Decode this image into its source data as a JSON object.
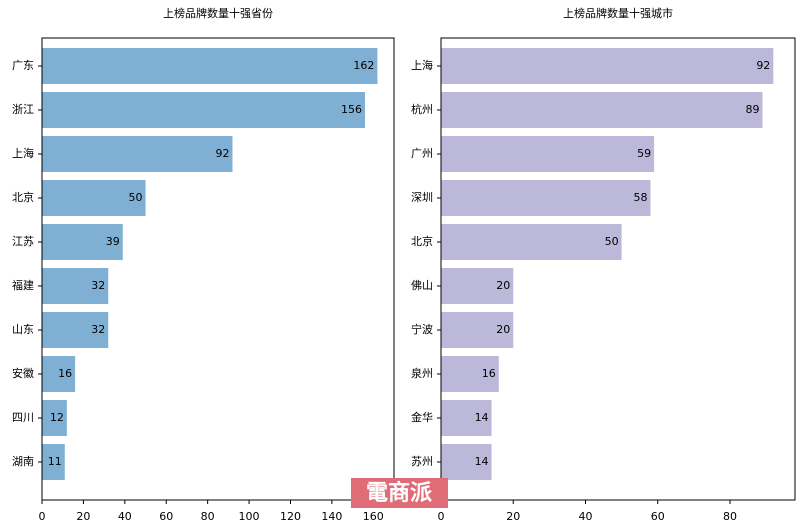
{
  "chart_data": [
    {
      "type": "bar",
      "orientation": "horizontal",
      "title": "上榜品牌数量十强省份",
      "categories": [
        "广东",
        "浙江",
        "上海",
        "北京",
        "江苏",
        "福建",
        "山东",
        "安徽",
        "四川",
        "湖南"
      ],
      "values": [
        162,
        156,
        92,
        50,
        39,
        32,
        32,
        16,
        12,
        11
      ],
      "color": "#7fb0d3",
      "xlim": [
        0,
        170
      ],
      "xticks": [
        0,
        20,
        40,
        60,
        80,
        100,
        120,
        140,
        160
      ]
    },
    {
      "type": "bar",
      "orientation": "horizontal",
      "title": "上榜品牌数量十强城市",
      "categories": [
        "上海",
        "杭州",
        "广州",
        "深圳",
        "北京",
        "佛山",
        "宁波",
        "泉州",
        "金华",
        "苏州"
      ],
      "values": [
        92,
        89,
        59,
        58,
        50,
        20,
        20,
        16,
        14,
        14
      ],
      "color": "#bcb8da",
      "xlim": [
        0,
        98
      ],
      "xticks": [
        0,
        20,
        40,
        60,
        80
      ]
    }
  ],
  "watermark": "電商派"
}
